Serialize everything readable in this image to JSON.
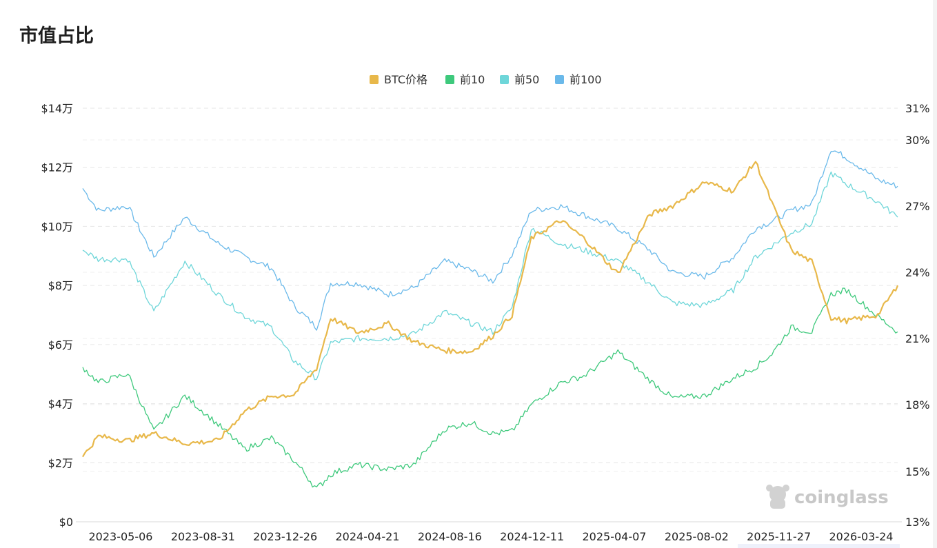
{
  "page": {
    "title": "市值占比"
  },
  "watermark": {
    "text": "coinglass",
    "icon": "coinglass-mascot-icon"
  },
  "colors": {
    "btc": "#e8b84a",
    "top10": "#3ec97c",
    "top50": "#6ed6d9",
    "top100": "#6ab9ea",
    "grid": "#e6e6e6"
  },
  "chart_data": {
    "type": "line",
    "title": "",
    "legend": [
      {
        "name": "BTC价格",
        "color": "#e8b84a"
      },
      {
        "name": "前10",
        "color": "#3ec97c"
      },
      {
        "name": "前50",
        "color": "#6ed6d9"
      },
      {
        "name": "前100",
        "color": "#6ab9ea"
      }
    ],
    "legend_placement": "top-center",
    "grid": true,
    "x_tick_labels": [
      "2023-05-06",
      "2023-08-31",
      "2023-12-26",
      "2024-04-21",
      "2024-08-16",
      "2024-12-11",
      "2025-04-07",
      "2025-08-02",
      "2025-11-27",
      "2026-03-24"
    ],
    "y_left": {
      "ticks": [
        0,
        20000,
        40000,
        60000,
        80000,
        100000,
        120000,
        140000
      ],
      "tick_labels": [
        "$0",
        "$2万",
        "$4万",
        "$6万",
        "$8万",
        "$10万",
        "$12万",
        "$14万"
      ],
      "range": [
        0,
        140000
      ]
    },
    "y_right": {
      "ticks": [
        13,
        15,
        18,
        21,
        24,
        27,
        30,
        31
      ],
      "tick_labels": [
        "13%",
        "15%",
        "18%",
        "21%",
        "24%",
        "27%",
        "30%",
        "31%"
      ],
      "range": [
        13,
        31
      ]
    },
    "x": [
      "2023-04",
      "2023-05-06",
      "2023-06-15",
      "2023-07-20",
      "2023-08-31",
      "2023-10-15",
      "2023-11-20",
      "2023-12-26",
      "2024-01-25",
      "2024-02-25",
      "2024-03-15",
      "2024-04-21",
      "2024-06-01",
      "2024-07-05",
      "2024-08-16",
      "2024-09-20",
      "2024-10-20",
      "2024-11-15",
      "2024-12-11",
      "2025-01-20",
      "2025-02-20",
      "2025-04-07",
      "2025-05-20",
      "2025-06-20",
      "2025-08-02",
      "2025-09-10",
      "2025-10-10",
      "2025-11-01",
      "2025-11-27",
      "2025-12-25",
      "2026-01-20",
      "2026-02-10",
      "2026-03-24",
      "2026-04-20"
    ],
    "series": [
      {
        "name": "BTC价格",
        "axis": "left",
        "values": [
          22000,
          29000,
          27500,
          30000,
          26500,
          27500,
          37500,
          42500,
          43000,
          52000,
          69000,
          64000,
          67000,
          61000,
          58000,
          57500,
          63000,
          70000,
          96000,
          102000,
          96000,
          84000,
          104000,
          107000,
          115000,
          112000,
          122000,
          108000,
          92000,
          88000,
          69000,
          68000,
          70000,
          80000
        ]
      },
      {
        "name": "前10",
        "axis": "right",
        "values": [
          19.7,
          19.0,
          19.4,
          16.8,
          18.4,
          17.1,
          16.0,
          16.5,
          15.5,
          14.3,
          14.9,
          15.3,
          15.1,
          15.3,
          16.9,
          17.2,
          16.7,
          16.8,
          18.0,
          19.0,
          19.3,
          20.4,
          19.1,
          18.3,
          18.4,
          19.2,
          19.7,
          20.3,
          21.5,
          21.3,
          23.0,
          23.2,
          22.0,
          21.3
        ]
      },
      {
        "name": "前50",
        "axis": "right",
        "values": [
          25.0,
          24.6,
          24.6,
          22.2,
          24.5,
          23.0,
          22.0,
          21.5,
          20.0,
          19.2,
          20.8,
          21.0,
          21.0,
          21.2,
          22.2,
          21.7,
          21.3,
          22.4,
          26.0,
          25.3,
          25.0,
          24.5,
          23.5,
          22.6,
          22.5,
          23.2,
          24.7,
          25.2,
          25.8,
          26.2,
          28.5,
          28.0,
          27.2,
          26.5
        ]
      },
      {
        "name": "前100",
        "axis": "right",
        "values": [
          27.8,
          26.8,
          27.0,
          24.7,
          26.5,
          25.3,
          24.7,
          24.2,
          22.5,
          21.5,
          23.5,
          23.5,
          23.0,
          23.3,
          24.5,
          24.1,
          23.6,
          24.8,
          26.8,
          27.0,
          26.6,
          26.0,
          25.0,
          24.0,
          23.8,
          24.7,
          26.0,
          26.3,
          26.8,
          27.1,
          29.6,
          29.2,
          28.2,
          27.9
        ]
      }
    ]
  }
}
